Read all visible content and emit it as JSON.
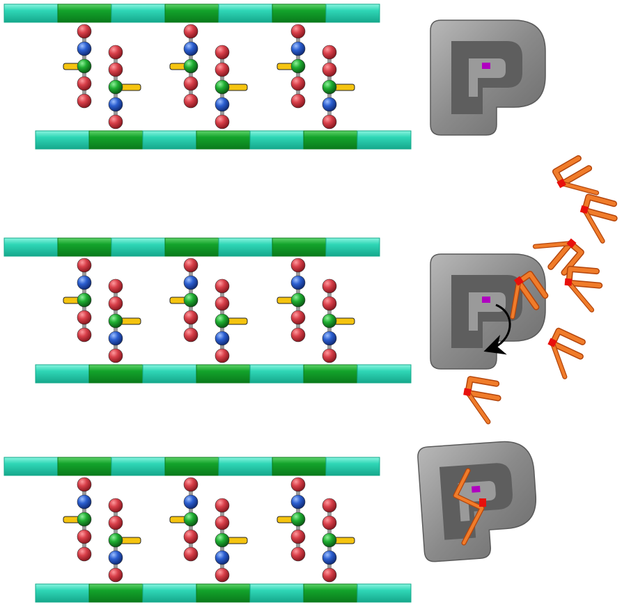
{
  "panels": [
    {
      "id": "panel-1",
      "state": "enzyme-empty"
    },
    {
      "id": "panel-2",
      "state": "substrates-near-enzyme"
    },
    {
      "id": "panel-3",
      "state": "substrate-bound"
    }
  ],
  "strand": {
    "segment_pattern": [
      "light",
      "dark",
      "light",
      "dark",
      "light",
      "dark",
      "light"
    ],
    "colors": {
      "light": "#2fd6b6",
      "dark": "#12a52b",
      "highlight": "#6ff0d6"
    }
  },
  "connector": {
    "bead_order_top": [
      "red",
      "blue",
      "green",
      "red",
      "red"
    ],
    "bead_order_bottom": [
      "red",
      "red",
      "green",
      "blue",
      "red"
    ],
    "colors": {
      "red": "#c8323a",
      "blue": "#2456c8",
      "green": "#17a22a",
      "yellow": "#f5c410",
      "stem": "#9a9a9a"
    }
  },
  "enzyme": {
    "body_color": "#8a8a8a",
    "pocket_color": "#5e5e5e",
    "active_site_color": "#b000c0"
  },
  "substrate": {
    "color": "#f07c2a",
    "tip_color": "#e8100c",
    "count_free": 7
  },
  "arrow": {
    "color": "#000000"
  }
}
